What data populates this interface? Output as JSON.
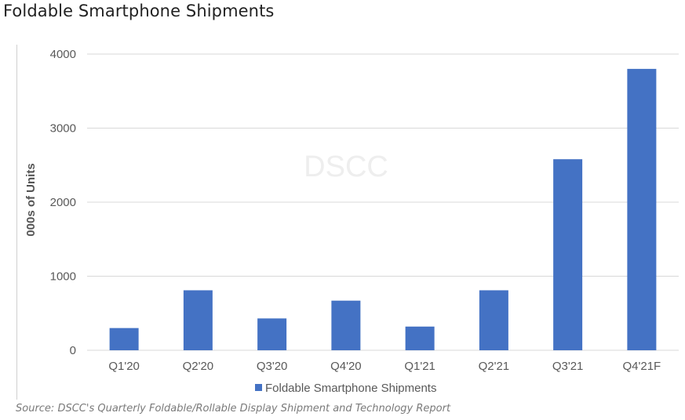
{
  "header": {
    "title": "Foldable Smartphone Shipments"
  },
  "footer": {
    "source": "Source: DSCC's Quarterly Foldable/Rollable Display Shipment and Technology Report"
  },
  "watermark": "DSCC",
  "colors": {
    "bar": "#4472C4",
    "grid": "#d9d9d9",
    "axis_text": "#595959"
  },
  "chart_data": {
    "type": "bar",
    "categories": [
      "Q1'20",
      "Q2'20",
      "Q3'20",
      "Q4'20",
      "Q1'21",
      "Q2'21",
      "Q3'21",
      "Q4'21F"
    ],
    "series": [
      {
        "name": "Foldable Smartphone Shipments",
        "values": [
          300,
          810,
          430,
          670,
          320,
          810,
          2580,
          3800
        ]
      }
    ],
    "xlabel": "",
    "ylabel": "000s of Units",
    "ylim": [
      0,
      4000
    ],
    "yticks": [
      0,
      1000,
      2000,
      3000,
      4000
    ],
    "grid": true,
    "legend": "bottom"
  }
}
